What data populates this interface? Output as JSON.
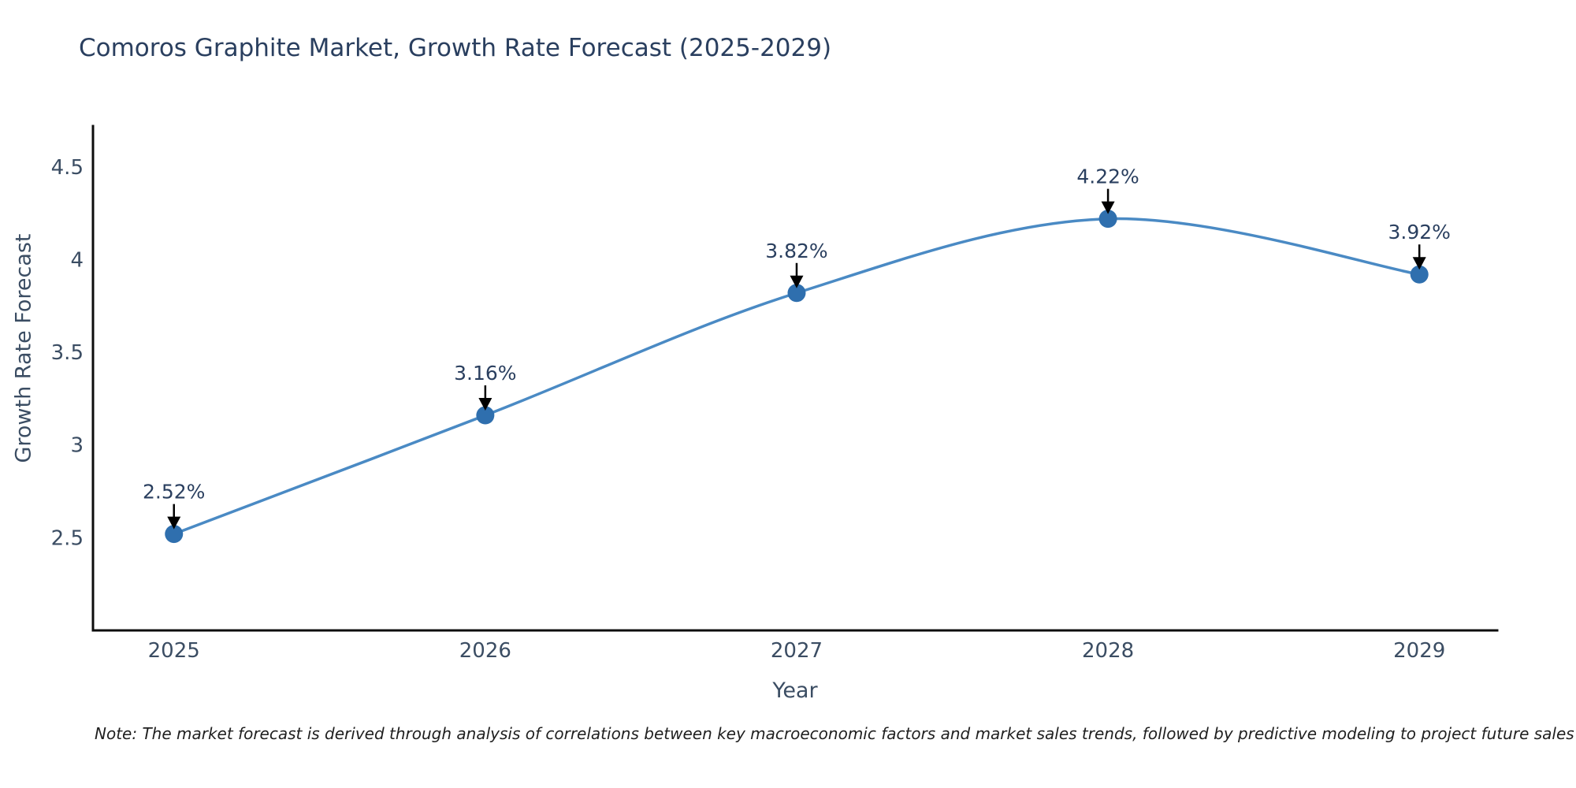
{
  "title": "Comoros Graphite Market, Growth Rate Forecast (2025-2029)",
  "note": "Note: The market forecast is derived through analysis of correlations between key macroeconomic factors and market sales trends, followed by predictive modeling to project future sales",
  "colors": {
    "background": "#ffffff",
    "title_text": "#2a3f5f",
    "axis_label_text": "#3b4d63",
    "tick_text": "#3b4d63",
    "annotation_text": "#2a3f5f",
    "line": "#4a8ac4",
    "marker": "#2f6fae",
    "arrow": "#000000",
    "spine": "#0d0d0d",
    "note_text": "#1f1f1f"
  },
  "chart_data": {
    "type": "line",
    "title": "Comoros Graphite Market, Growth Rate Forecast (2025-2029)",
    "xlabel": "Year",
    "ylabel": "Growth Rate Forecast",
    "x": [
      2025,
      2026,
      2027,
      2028,
      2029
    ],
    "y": [
      2.52,
      3.16,
      3.82,
      4.22,
      3.92
    ],
    "point_labels": [
      "2.52%",
      "3.16%",
      "3.82%",
      "4.22%",
      "3.92%"
    ],
    "xtick_labels": [
      "2025",
      "2026",
      "2027",
      "2028",
      "2029"
    ],
    "ytick_values": [
      2.5,
      3,
      3.5,
      4,
      4.5
    ],
    "ytick_labels": [
      "2.5",
      "3",
      "3.5",
      "4",
      "4.5"
    ],
    "xlim": [
      2024.74,
      2029.25
    ],
    "ylim": [
      2.0,
      4.72
    ],
    "grid": false,
    "legend": "none",
    "line_shape": "spline",
    "markers": true,
    "annotations_arrows": true
  }
}
